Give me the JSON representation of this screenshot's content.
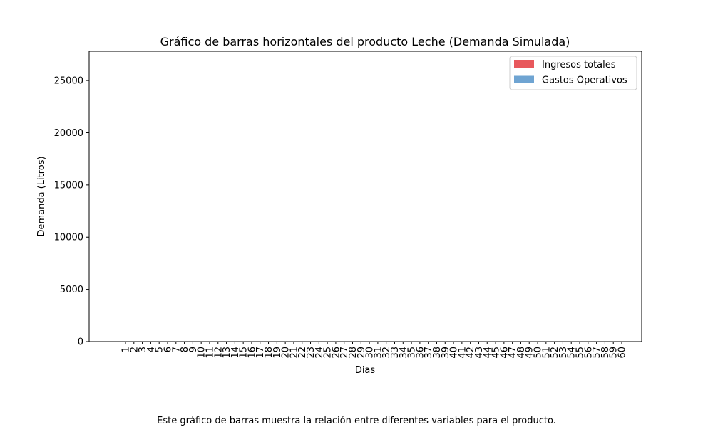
{
  "chart_data": {
    "type": "bar",
    "title": "Gráfico de barras horizontales del producto Leche (Demanda Simulada)",
    "xlabel": "Dias",
    "ylabel": "Demanda (Litros)",
    "categories": [
      "1",
      "2",
      "3",
      "4",
      "5",
      "6",
      "7",
      "8",
      "9",
      "10",
      "11",
      "12",
      "13",
      "14",
      "15",
      "16",
      "17",
      "18",
      "19",
      "20",
      "21",
      "22",
      "23",
      "24",
      "25",
      "26",
      "27",
      "28",
      "29",
      "30",
      "31",
      "32",
      "33",
      "34",
      "35",
      "36",
      "37",
      "38",
      "39",
      "40",
      "41",
      "42",
      "43",
      "44",
      "45",
      "46",
      "47",
      "48",
      "49",
      "50",
      "51",
      "52",
      "53",
      "54",
      "55",
      "56",
      "57",
      "58",
      "59",
      "60"
    ],
    "series": [
      {
        "name": "Ingresos totales",
        "color": "#e8585c",
        "values": [
          0,
          0,
          0,
          0,
          0,
          0,
          0,
          0,
          0,
          0,
          0,
          0,
          0,
          0,
          0,
          0,
          0,
          0,
          0,
          0,
          0,
          0,
          0,
          0,
          0,
          0,
          0,
          0,
          0,
          0,
          0,
          0,
          0,
          0,
          0,
          0,
          0,
          0,
          0,
          0,
          0,
          0,
          0,
          0,
          0,
          0,
          0,
          0,
          0,
          0,
          0,
          0,
          0,
          0,
          0,
          0,
          0,
          0,
          0,
          0
        ]
      },
      {
        "name": "Gastos Operativos",
        "color": "#6fa4d2",
        "values": [
          0,
          0,
          0,
          0,
          0,
          0,
          0,
          0,
          0,
          0,
          0,
          0,
          0,
          0,
          0,
          0,
          0,
          0,
          0,
          0,
          0,
          0,
          0,
          0,
          0,
          0,
          0,
          0,
          0,
          0,
          0,
          0,
          0,
          0,
          0,
          0,
          0,
          0,
          0,
          0,
          0,
          0,
          0,
          0,
          0,
          0,
          0,
          0,
          0,
          0,
          0,
          0,
          0,
          0,
          0,
          0,
          0,
          0,
          0,
          0
        ]
      }
    ],
    "yticks": [
      0,
      5000,
      10000,
      15000,
      20000,
      25000
    ],
    "ylim": [
      0,
      27800
    ],
    "legend": "top-right",
    "grid": false
  },
  "caption": "Este gráfico de barras muestra la relación entre diferentes variables para el producto."
}
